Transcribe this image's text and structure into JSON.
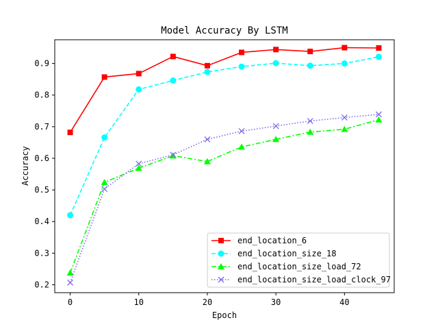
{
  "chart_data": {
    "type": "line",
    "title": "Model Accuracy By LSTM",
    "xlabel": "Epoch",
    "ylabel": "Accuracy",
    "xlim": [
      -2.25,
      47.25
    ],
    "ylim": [
      0.175,
      0.975
    ],
    "xticks": [
      0,
      10,
      20,
      30,
      40
    ],
    "yticks": [
      0.2,
      0.3,
      0.4,
      0.5,
      0.6,
      0.7,
      0.8,
      0.9
    ],
    "grid": false,
    "legend_position": "lower-right",
    "x": [
      0,
      5,
      10,
      15,
      20,
      25,
      30,
      35,
      40,
      45
    ],
    "series": [
      {
        "name": "end_location_6",
        "color": "#ff0000",
        "line_style": "solid",
        "marker": "square",
        "values": [
          0.682,
          0.857,
          0.868,
          0.922,
          0.893,
          0.935,
          0.944,
          0.938,
          0.95,
          0.949
        ]
      },
      {
        "name": "end_location_size_18",
        "color": "#00ffff",
        "line_style": "dashed",
        "marker": "circle",
        "values": [
          0.42,
          0.666,
          0.818,
          0.846,
          0.873,
          0.89,
          0.901,
          0.893,
          0.9,
          0.921
        ]
      },
      {
        "name": "end_location_size_load_72",
        "color": "#00ff00",
        "line_style": "dashdot",
        "marker": "triangle",
        "values": [
          0.238,
          0.524,
          0.569,
          0.608,
          0.59,
          0.636,
          0.66,
          0.683,
          0.692,
          0.722
        ]
      },
      {
        "name": "end_location_size_load_clock_97",
        "color": "#7b68ee",
        "line_style": "dotted",
        "marker": "x",
        "values": [
          0.207,
          0.503,
          0.583,
          0.611,
          0.66,
          0.686,
          0.702,
          0.718,
          0.729,
          0.739
        ]
      }
    ]
  }
}
